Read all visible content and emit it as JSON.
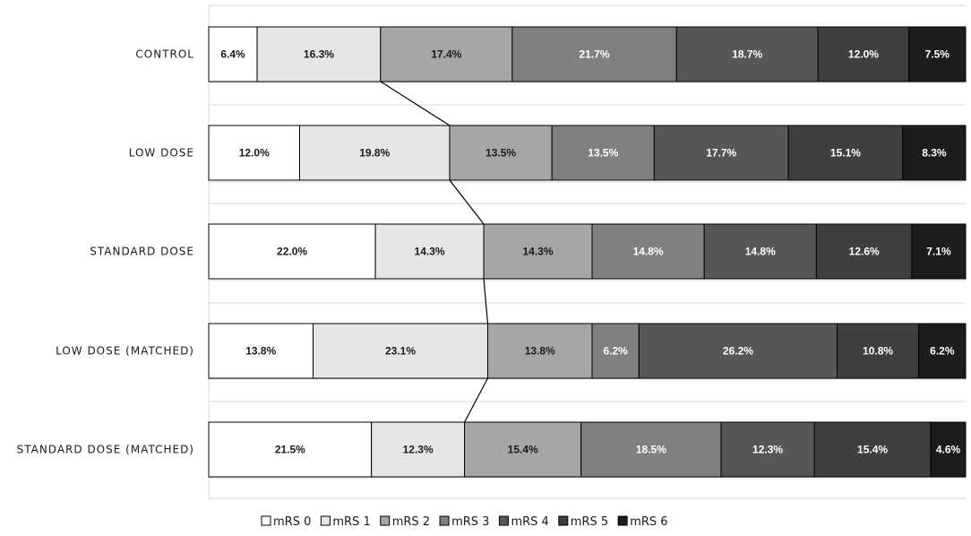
{
  "chart_data": {
    "type": "bar",
    "orientation": "horizontal",
    "stacked": "100%",
    "categories": [
      "CONTROL",
      "LOW DOSE",
      "STANDARD DOSE",
      "LOW DOSE (MATCHED)",
      "STANDARD DOSE (MATCHED)"
    ],
    "series": [
      {
        "name": "mRS 0",
        "color": "#ffffff",
        "values": [
          6.4,
          12.0,
          22.0,
          13.8,
          21.5
        ],
        "labels": [
          "6.4%",
          "12.0%",
          "22.0%",
          "13.8%",
          "21.5%"
        ]
      },
      {
        "name": "mRS 1",
        "color": "#e6e6e6",
        "values": [
          16.3,
          19.8,
          14.3,
          23.1,
          12.3
        ],
        "labels": [
          "16.3%",
          "19.8%",
          "14.3%",
          "23.1%",
          "12.3%"
        ]
      },
      {
        "name": "mRS 2",
        "color": "#a6a6a6",
        "values": [
          17.4,
          13.5,
          14.3,
          13.8,
          15.4
        ],
        "labels": [
          "17.4%",
          "13.5%",
          "14.3%",
          "13.8%",
          "15.4%"
        ]
      },
      {
        "name": "mRS 3",
        "color": "#808080",
        "values": [
          21.7,
          13.5,
          14.8,
          6.2,
          18.5
        ],
        "labels": [
          "21.7%",
          "13.5%",
          "14.8%",
          "6.2%",
          "18.5%"
        ]
      },
      {
        "name": "mRS 4",
        "color": "#575757",
        "values": [
          18.7,
          17.7,
          14.8,
          26.2,
          12.3
        ],
        "labels": [
          "18.7%",
          "17.7%",
          "14.8%",
          "26.2%",
          "12.3%"
        ]
      },
      {
        "name": "mRS 5",
        "color": "#3f3f3f",
        "values": [
          12.0,
          15.1,
          12.6,
          10.8,
          15.4
        ],
        "labels": [
          "12.0%",
          "15.1%",
          "12.6%",
          "10.8%",
          "15.4%"
        ]
      },
      {
        "name": "mRS 6",
        "color": "#1c1c1c",
        "values": [
          7.5,
          8.3,
          7.1,
          6.2,
          4.6
        ],
        "labels": [
          "7.5%",
          "8.3%",
          "7.1%",
          "6.2%",
          "4.6%"
        ]
      }
    ],
    "connector_lines": "between mRS 1 and mRS 2 boundaries of adjacent bars",
    "xlim": [
      0,
      100
    ],
    "grid": true,
    "legend": "bottom"
  }
}
